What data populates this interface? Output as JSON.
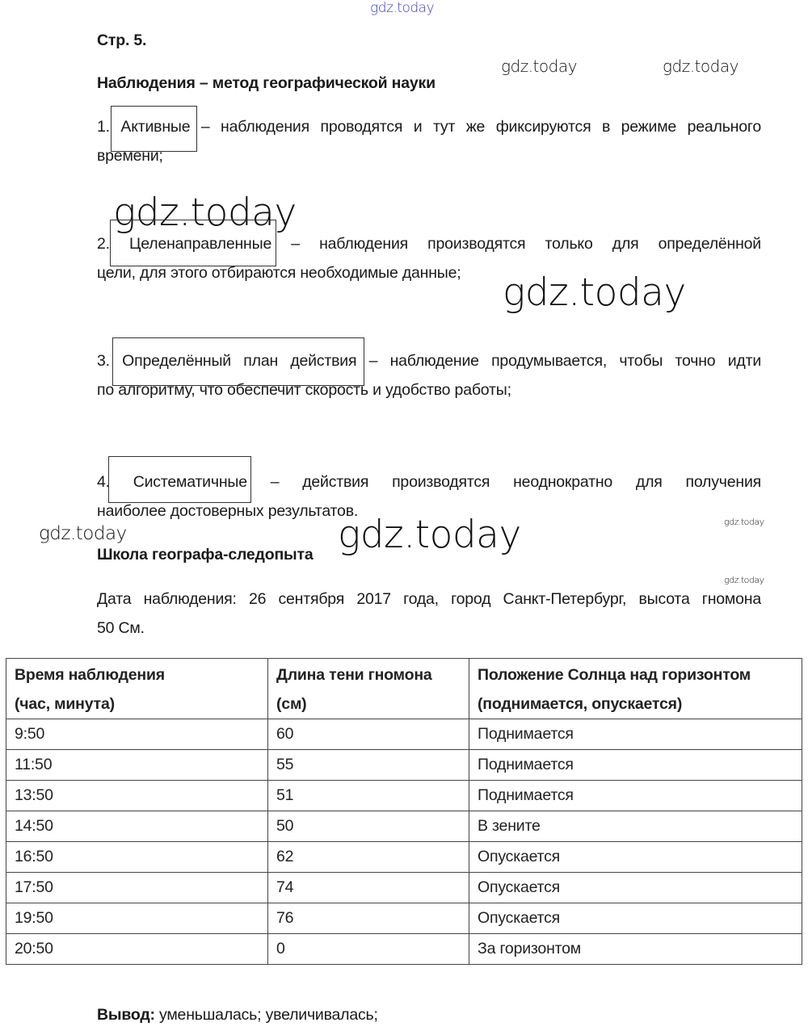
{
  "watermark": "gdz.today",
  "page_label": "Стр. 5.",
  "section1": {
    "heading": "Наблюдения – метод географической науки",
    "items": [
      {
        "num": "1.",
        "answer": "Активные",
        "line1": "– наблюдения проводятся и тут же фиксируются в режиме реального",
        "line2": "времени;"
      },
      {
        "num": "2.",
        "answer": "Целенаправленные",
        "line1": "– наблюдения производятся только для определённой",
        "line2": "цели, для этого отбираются необходимые данные;"
      },
      {
        "num": "3.",
        "answer": "Определённый план действия",
        "line1": "– наблюдение продумывается, чтобы точно идти",
        "line2": "по алгоритму, что обеспечит скорость и удобство работы;"
      },
      {
        "num": "4.",
        "answer": "Систематичные",
        "line1": "– действия производятся неоднократно для получения",
        "line2": "наиболее достоверных результатов."
      }
    ]
  },
  "section2": {
    "heading": "Школа географа-следопыта",
    "line1": "Дата наблюдения: 26 сентября 2017 года, город Санкт-Петербург, высота гномона",
    "line2": "50 См."
  },
  "table": {
    "headers": [
      [
        "Время наблюдения",
        "(час, минута)"
      ],
      [
        "Длина тени гномона",
        "(см)"
      ],
      [
        "Положение Солнца над горизонтом",
        "(поднимается, опускается)"
      ]
    ],
    "rows": [
      [
        "9:50",
        "60",
        "Поднимается"
      ],
      [
        "11:50",
        "55",
        "Поднимается"
      ],
      [
        "13:50",
        "51",
        "Поднимается"
      ],
      [
        "14:50",
        "50",
        "В зените"
      ],
      [
        "16:50",
        "62",
        "Опускается"
      ],
      [
        "17:50",
        "74",
        "Опускается"
      ],
      [
        "19:50",
        "76",
        "Опускается"
      ],
      [
        "20:50",
        "0",
        "За горизонтом"
      ]
    ]
  },
  "conclusion": {
    "label": "Вывод:",
    "text": " уменьшалась; увеличивалась;"
  },
  "colors": {
    "watermark_top": "#3a3acc",
    "text": "#1a1a1a"
  }
}
